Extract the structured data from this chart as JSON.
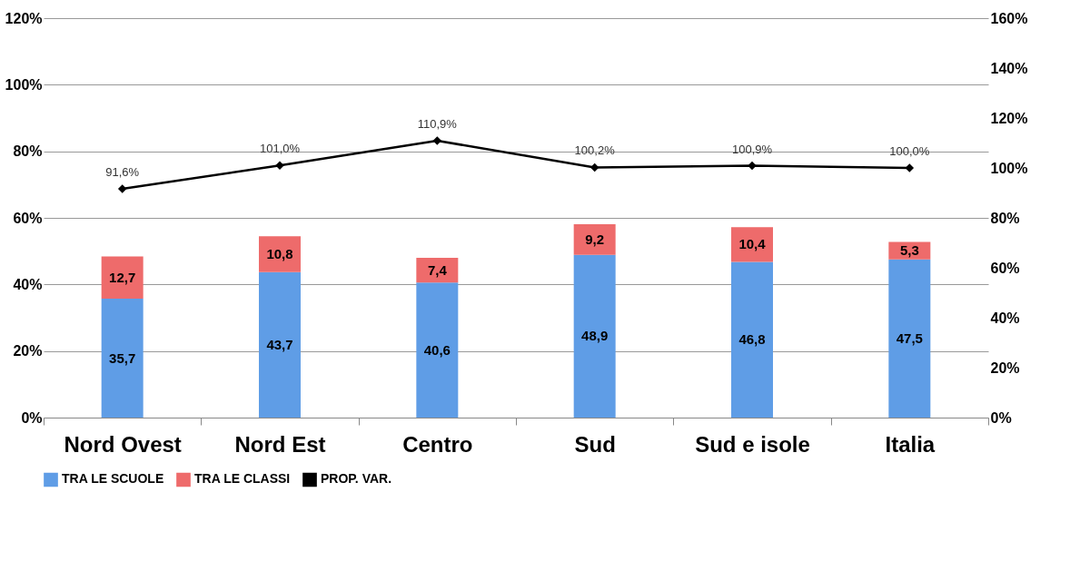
{
  "chart_data": {
    "type": "bar",
    "stacked": true,
    "categories": [
      "Nord Ovest",
      "Nord Est",
      "Centro",
      "Sud",
      "Sud e isole",
      "Italia"
    ],
    "series": [
      {
        "name": "TRA LE SCUOLE",
        "type": "bar",
        "color": "#5f9de6",
        "values": [
          35.7,
          43.7,
          40.6,
          48.9,
          46.8,
          47.5
        ],
        "value_labels": [
          "35,7",
          "43,7",
          "40,6",
          "48,9",
          "46,8",
          "47,5"
        ]
      },
      {
        "name": "TRA LE CLASSI",
        "type": "bar",
        "color": "#ee6b6b",
        "values": [
          12.7,
          10.8,
          7.4,
          9.2,
          10.4,
          5.3
        ],
        "value_labels": [
          "12,7",
          "10,8",
          "7,4",
          "9,2",
          "10,4",
          "5,3"
        ]
      },
      {
        "name": "PROP. VAR.",
        "type": "line",
        "axis": "y2",
        "color": "#000000",
        "values": [
          91.6,
          101.0,
          110.9,
          100.2,
          100.9,
          100.0
        ],
        "value_labels": [
          "91,6%",
          "101,0%",
          "110,9%",
          "100,2%",
          "100,9%",
          "100,0%"
        ]
      }
    ],
    "ylim": [
      0,
      120
    ],
    "yticks": [
      {
        "value": 0,
        "label": "0%"
      },
      {
        "value": 20,
        "label": "20%"
      },
      {
        "value": 40,
        "label": "40%"
      },
      {
        "value": 60,
        "label": "60%"
      },
      {
        "value": 80,
        "label": "80%"
      },
      {
        "value": 100,
        "label": "100%"
      },
      {
        "value": 120,
        "label": "120%"
      }
    ],
    "y2lim": [
      0,
      160
    ],
    "y2ticks": [
      {
        "value": 0,
        "label": "0%"
      },
      {
        "value": 20,
        "label": "20%"
      },
      {
        "value": 40,
        "label": "40%"
      },
      {
        "value": 60,
        "label": "60%"
      },
      {
        "value": 80,
        "label": "80%"
      },
      {
        "value": 100,
        "label": "100%"
      },
      {
        "value": 120,
        "label": "120%"
      },
      {
        "value": 140,
        "label": "140%"
      },
      {
        "value": 160,
        "label": "160%"
      }
    ],
    "grid": "y",
    "legend": "bottom",
    "marker": "diamond"
  }
}
